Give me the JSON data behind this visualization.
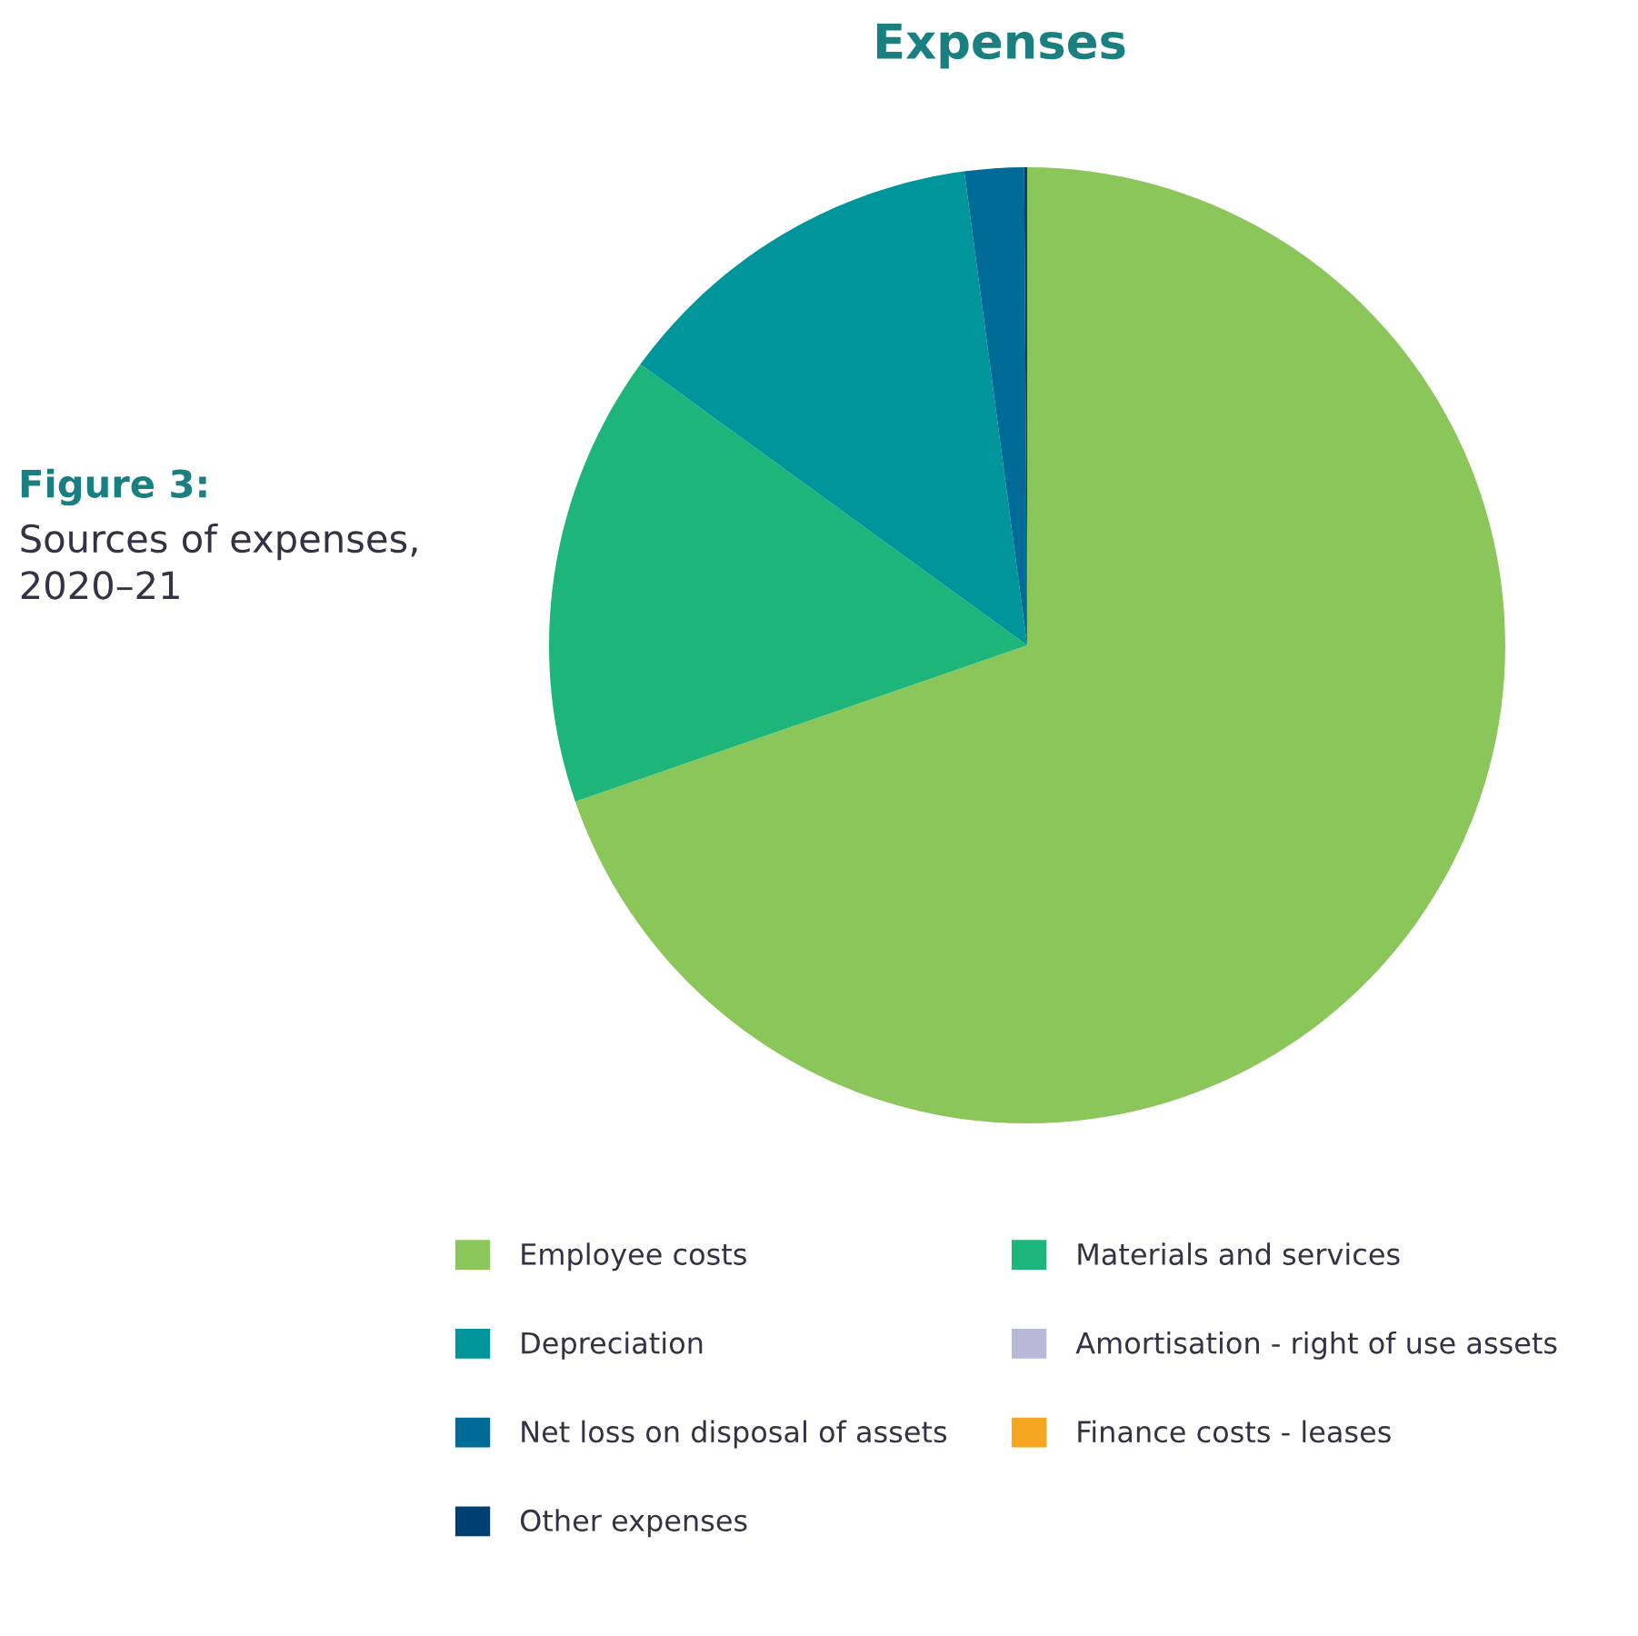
{
  "chart_data": {
    "type": "pie",
    "title": "Expenses",
    "categories": [
      "Employee costs",
      "Materials and services",
      "Depreciation",
      "Amortisation - right of use assets",
      "Net loss on disposal of assets",
      "Finance costs - leases",
      "Other expenses"
    ],
    "values": [
      69.7,
      15.3,
      12.9,
      0,
      2.0,
      0,
      0.1
    ],
    "colors": [
      "#8bc65a",
      "#1db57a",
      "#00959a",
      "#b8b8d8",
      "#006b96",
      "#f5a623",
      "#003f72"
    ],
    "legend": "bottom",
    "annotations": [
      "Figure 3:",
      "Sources of expenses, 2020–21"
    ]
  }
}
